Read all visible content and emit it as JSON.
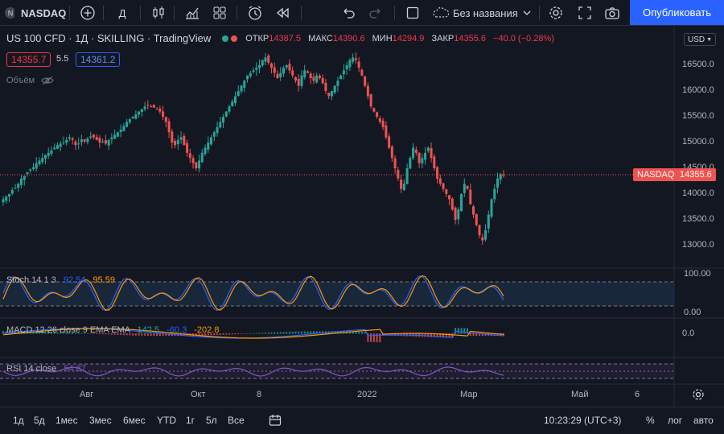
{
  "toolbar": {
    "symbol": "NASDAQ",
    "interval": "Д",
    "layout_name": "Без названия",
    "publish_label": "Опубликовать"
  },
  "legend": {
    "title": "US 100 CFD · 1Д · SKILLING · TradingView",
    "open_label": "ОТКР",
    "open": "14387.5",
    "high_label": "МАКС",
    "high": "14390.6",
    "low_label": "МИН",
    "low": "14294.9",
    "close_label": "ЗАКР",
    "close": "14355.6",
    "change": "−40.0 (−0.28%)",
    "bid": "14355.7",
    "spread": "5.5",
    "ask": "14361.2",
    "volume_label": "Объём"
  },
  "price_axis": {
    "currency": "USD",
    "ticks": [
      "16500.0",
      "16000.0",
      "15500.0",
      "15000.0",
      "14500.0",
      "14000.0",
      "13500.0",
      "13000.0"
    ],
    "last_label": "NASDAQ",
    "last_value": "14355.6"
  },
  "stoch": {
    "label": "Stoch 14 1 3",
    "k": "92.54",
    "d": "95.59",
    "ticks": [
      "100.00",
      "0.00"
    ]
  },
  "macd": {
    "label": "MACD 12 26 close 9 EMA EMA",
    "hist": "142.5",
    "signal": "-60.3",
    "macd": "-202.8",
    "tick": "0.0"
  },
  "rsi": {
    "label": "RSI 14 close",
    "value": "54.87"
  },
  "time_axis": [
    "Авг",
    "Окт",
    "8",
    "2022",
    "Мар",
    "Май",
    "6"
  ],
  "bottom": {
    "ranges": [
      "1д",
      "5д",
      "1мес",
      "3мес",
      "6мес",
      "YTD",
      "1г",
      "5л",
      "Все"
    ],
    "time": "10:23:29 (UTC+3)",
    "percent": "%",
    "log": "лог",
    "auto": "авто"
  },
  "colors": {
    "up": "#26a69a",
    "down": "#ef5350",
    "bg": "#131722",
    "accent": "#2962ff"
  },
  "chart_data": {
    "type": "candlestick",
    "ylim": [
      12800,
      16800
    ],
    "closes": [
      13900,
      13950,
      14000,
      14080,
      14120,
      14200,
      14300,
      14350,
      14420,
      14480,
      14520,
      14600,
      14650,
      14700,
      14760,
      14800,
      14850,
      14900,
      14950,
      14980,
      15000,
      15050,
      15100,
      15050,
      14950,
      14980,
      15060,
      15020,
      15080,
      15120,
      15100,
      15050,
      15000,
      15020,
      14980,
      15050,
      15100,
      15150,
      15200,
      15250,
      15320,
      15400,
      15450,
      15500,
      15550,
      15600,
      15650,
      15700,
      15720,
      15700,
      15680,
      15650,
      15600,
      15500,
      15400,
      15200,
      15000,
      14950,
      15050,
      15100,
      14950,
      14800,
      14700,
      14600,
      14500,
      14650,
      14800,
      14900,
      15000,
      15100,
      15200,
      15300,
      15400,
      15500,
      15600,
      15700,
      15800,
      15900,
      16000,
      16100,
      16200,
      16300,
      16350,
      16400,
      16450,
      16500,
      16600,
      16650,
      16550,
      16450,
      16350,
      16250,
      16350,
      16450,
      16500,
      16400,
      16300,
      16200,
      16100,
      16300,
      16400,
      16350,
      16250,
      16200,
      16300,
      16250,
      16150,
      16000,
      15900,
      16000,
      16100,
      16200,
      16300,
      16400,
      16500,
      16600,
      16650,
      16600,
      16450,
      16300,
      16100,
      15900,
      15700,
      15600,
      15500,
      15400,
      15300,
      15100,
      14900,
      14700,
      14500,
      14300,
      14100,
      14200,
      14500,
      14700,
      14900,
      14800,
      14600,
      14700,
      14800,
      14900,
      14700,
      14500,
      14300,
      14200,
      14100,
      14000,
      13900,
      13700,
      13500,
      13700,
      14000,
      14200,
      14100,
      13800,
      13600,
      13400,
      13200,
      13100,
      13300,
      13600,
      13900,
      14100,
      14300,
      14388,
      14356
    ]
  }
}
